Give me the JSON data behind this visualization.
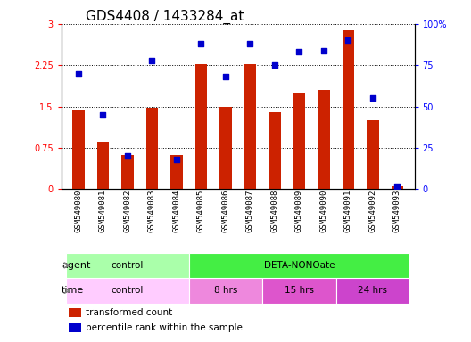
{
  "title": "GDS4408 / 1433284_at",
  "samples": [
    "GSM549080",
    "GSM549081",
    "GSM549082",
    "GSM549083",
    "GSM549084",
    "GSM549085",
    "GSM549086",
    "GSM549087",
    "GSM549088",
    "GSM549089",
    "GSM549090",
    "GSM549091",
    "GSM549092",
    "GSM549093"
  ],
  "transformed_count": [
    1.43,
    0.85,
    0.62,
    1.47,
    0.62,
    2.27,
    1.5,
    2.27,
    1.4,
    1.75,
    1.8,
    2.88,
    1.25,
    0.05
  ],
  "percentile_rank": [
    70,
    45,
    20,
    78,
    18,
    88,
    68,
    88,
    75,
    83,
    84,
    90,
    55,
    1
  ],
  "bar_color": "#cc2200",
  "dot_color": "#0000cc",
  "ylim_left": [
    0,
    3
  ],
  "ylim_right": [
    0,
    100
  ],
  "yticks_left": [
    0,
    0.75,
    1.5,
    2.25,
    3
  ],
  "yticks_right": [
    0,
    25,
    50,
    75,
    100
  ],
  "ytick_labels_left": [
    "0",
    "0.75",
    "1.5",
    "2.25",
    "3"
  ],
  "ytick_labels_right": [
    "0",
    "25",
    "50",
    "75",
    "100%"
  ],
  "agent_groups": [
    {
      "label": "control",
      "start": 0,
      "end": 5,
      "color": "#aaffaa"
    },
    {
      "label": "DETA-NONOate",
      "start": 5,
      "end": 14,
      "color": "#44ee44"
    }
  ],
  "time_groups": [
    {
      "label": "control",
      "start": 0,
      "end": 5,
      "color": "#ffccff"
    },
    {
      "label": "8 hrs",
      "start": 5,
      "end": 8,
      "color": "#ee88dd"
    },
    {
      "label": "15 hrs",
      "start": 8,
      "end": 11,
      "color": "#dd55cc"
    },
    {
      "label": "24 hrs",
      "start": 11,
      "end": 14,
      "color": "#cc44cc"
    }
  ],
  "agent_label": "agent",
  "time_label": "time",
  "legend_bar_label": "transformed count",
  "legend_dot_label": "percentile rank within the sample",
  "xtick_bg_color": "#d8d8d8",
  "title_fontsize": 11,
  "tick_fontsize": 7,
  "bar_label_fontsize": 8,
  "row_label_fontsize": 9
}
